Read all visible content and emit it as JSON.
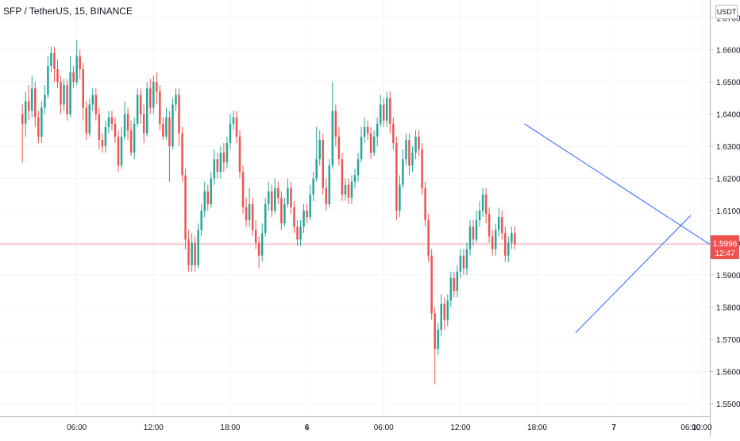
{
  "header": {
    "symbol": "SFP / TetherUS, 15, BINANCE",
    "currency": "USDT"
  },
  "price_badge": {
    "price": "1.5996",
    "countdown": "12:47"
  },
  "colors": {
    "up": "#26a69a",
    "down": "#ef5350",
    "trendline": "#2962ff",
    "axis_text": "#131722",
    "price_line": "#f7a1a0"
  },
  "chart_data": {
    "type": "candlestick",
    "ylim": [
      1.546,
      1.6755
    ],
    "yticks": [
      "1.5500",
      "1.5600",
      "1.5700",
      "1.5800",
      "1.5900",
      "1.6000",
      "1.6100",
      "1.6200",
      "1.6300",
      "1.6400",
      "1.6500",
      "1.6600",
      "1.6700"
    ],
    "ytick_values": [
      1.55,
      1.56,
      1.57,
      1.58,
      1.59,
      1.6,
      1.61,
      1.62,
      1.63,
      1.64,
      1.65,
      1.66,
      1.67
    ],
    "xlim": [
      -7,
      215
    ],
    "xticks": [
      {
        "label": "06:00",
        "x": 17
      },
      {
        "label": "12:00",
        "x": 41
      },
      {
        "label": "18:00",
        "x": 65
      },
      {
        "label": "6",
        "x": 89
      },
      {
        "label": "06:00",
        "x": 113
      },
      {
        "label": "12:00",
        "x": 137
      },
      {
        "label": "18:00",
        "x": 161
      },
      {
        "label": "7",
        "x": 185
      },
      {
        "label": "06:00",
        "x": 209
      }
    ],
    "extra_xtick": {
      "label": "10:00",
      "x": 225
    },
    "current_price": 1.5996,
    "bars": [
      [
        1.64,
        1.637,
        1.643,
        1.625
      ],
      [
        1.637,
        1.644,
        1.647,
        1.633
      ],
      [
        1.644,
        1.641,
        1.649,
        1.638
      ],
      [
        1.641,
        1.648,
        1.652,
        1.639
      ],
      [
        1.648,
        1.639,
        1.65,
        1.636
      ],
      [
        1.639,
        1.633,
        1.641,
        1.631
      ],
      [
        1.633,
        1.642,
        1.644,
        1.631
      ],
      [
        1.642,
        1.646,
        1.649,
        1.64
      ],
      [
        1.646,
        1.655,
        1.658,
        1.645
      ],
      [
        1.655,
        1.659,
        1.661,
        1.653
      ],
      [
        1.659,
        1.654,
        1.661,
        1.65
      ],
      [
        1.654,
        1.65,
        1.657,
        1.648
      ],
      [
        1.65,
        1.643,
        1.652,
        1.64
      ],
      [
        1.643,
        1.649,
        1.651,
        1.641
      ],
      [
        1.649,
        1.64,
        1.651,
        1.638
      ],
      [
        1.64,
        1.653,
        1.658,
        1.639
      ],
      [
        1.653,
        1.65,
        1.655,
        1.648
      ],
      [
        1.65,
        1.658,
        1.663,
        1.649
      ],
      [
        1.658,
        1.654,
        1.66,
        1.651
      ],
      [
        1.654,
        1.642,
        1.656,
        1.638
      ],
      [
        1.642,
        1.634,
        1.644,
        1.632
      ],
      [
        1.634,
        1.643,
        1.645,
        1.633
      ],
      [
        1.643,
        1.646,
        1.648,
        1.641
      ],
      [
        1.646,
        1.64,
        1.648,
        1.638
      ],
      [
        1.64,
        1.632,
        1.642,
        1.629
      ],
      [
        1.632,
        1.63,
        1.634,
        1.628
      ],
      [
        1.63,
        1.636,
        1.638,
        1.628
      ],
      [
        1.636,
        1.639,
        1.641,
        1.634
      ],
      [
        1.639,
        1.637,
        1.641,
        1.635
      ],
      [
        1.637,
        1.633,
        1.639,
        1.631
      ],
      [
        1.633,
        1.624,
        1.635,
        1.622
      ],
      [
        1.624,
        1.633,
        1.636,
        1.623
      ],
      [
        1.633,
        1.64,
        1.644,
        1.632
      ],
      [
        1.64,
        1.635,
        1.642,
        1.632
      ],
      [
        1.635,
        1.628,
        1.638,
        1.627
      ],
      [
        1.628,
        1.637,
        1.639,
        1.626
      ],
      [
        1.637,
        1.646,
        1.648,
        1.636
      ],
      [
        1.646,
        1.64,
        1.648,
        1.637
      ],
      [
        1.64,
        1.634,
        1.643,
        1.631
      ],
      [
        1.634,
        1.648,
        1.65,
        1.633
      ],
      [
        1.648,
        1.642,
        1.651,
        1.64
      ],
      [
        1.642,
        1.65,
        1.652,
        1.64
      ],
      [
        1.65,
        1.647,
        1.653,
        1.643
      ],
      [
        1.647,
        1.637,
        1.649,
        1.635
      ],
      [
        1.637,
        1.633,
        1.639,
        1.632
      ],
      [
        1.633,
        1.639,
        1.642,
        1.632
      ],
      [
        1.639,
        1.63,
        1.641,
        1.619
      ],
      [
        1.63,
        1.643,
        1.645,
        1.629
      ],
      [
        1.643,
        1.646,
        1.648,
        1.641
      ],
      [
        1.646,
        1.634,
        1.648,
        1.63
      ],
      [
        1.634,
        1.621,
        1.636,
        1.619
      ],
      [
        1.621,
        1.601,
        1.623,
        1.598
      ],
      [
        1.601,
        1.593,
        1.604,
        1.591
      ],
      [
        1.593,
        1.6,
        1.603,
        1.591
      ],
      [
        1.6,
        1.593,
        1.602,
        1.591
      ],
      [
        1.593,
        1.604,
        1.606,
        1.592
      ],
      [
        1.604,
        1.61,
        1.612,
        1.602
      ],
      [
        1.61,
        1.616,
        1.619,
        1.608
      ],
      [
        1.616,
        1.612,
        1.618,
        1.61
      ],
      [
        1.612,
        1.62,
        1.622,
        1.611
      ],
      [
        1.62,
        1.626,
        1.629,
        1.618
      ],
      [
        1.626,
        1.622,
        1.628,
        1.62
      ],
      [
        1.622,
        1.628,
        1.63,
        1.62
      ],
      [
        1.628,
        1.625,
        1.631,
        1.622
      ],
      [
        1.625,
        1.631,
        1.633,
        1.623
      ],
      [
        1.631,
        1.637,
        1.64,
        1.629
      ],
      [
        1.637,
        1.639,
        1.641,
        1.635
      ],
      [
        1.639,
        1.633,
        1.641,
        1.631
      ],
      [
        1.633,
        1.622,
        1.635,
        1.62
      ],
      [
        1.622,
        1.611,
        1.624,
        1.609
      ],
      [
        1.611,
        1.607,
        1.614,
        1.605
      ],
      [
        1.607,
        1.612,
        1.617,
        1.605
      ],
      [
        1.612,
        1.604,
        1.614,
        1.602
      ],
      [
        1.604,
        1.6,
        1.607,
        1.598
      ],
      [
        1.6,
        1.596,
        1.602,
        1.592
      ],
      [
        1.596,
        1.603,
        1.606,
        1.594
      ],
      [
        1.603,
        1.612,
        1.614,
        1.602
      ],
      [
        1.612,
        1.616,
        1.619,
        1.61
      ],
      [
        1.616,
        1.61,
        1.618,
        1.608
      ],
      [
        1.61,
        1.617,
        1.62,
        1.609
      ],
      [
        1.617,
        1.614,
        1.619,
        1.612
      ],
      [
        1.614,
        1.606,
        1.616,
        1.604
      ],
      [
        1.606,
        1.612,
        1.614,
        1.605
      ],
      [
        1.612,
        1.617,
        1.62,
        1.611
      ],
      [
        1.617,
        1.611,
        1.619,
        1.609
      ],
      [
        1.611,
        1.605,
        1.613,
        1.603
      ],
      [
        1.605,
        1.601,
        1.607,
        1.599
      ],
      [
        1.601,
        1.605,
        1.607,
        1.599
      ],
      [
        1.605,
        1.61,
        1.612,
        1.603
      ],
      [
        1.61,
        1.608,
        1.612,
        1.606
      ],
      [
        1.608,
        1.615,
        1.618,
        1.607
      ],
      [
        1.615,
        1.62,
        1.622,
        1.613
      ],
      [
        1.62,
        1.626,
        1.636,
        1.619
      ],
      [
        1.626,
        1.632,
        1.635,
        1.624
      ],
      [
        1.632,
        1.617,
        1.634,
        1.615
      ],
      [
        1.617,
        1.612,
        1.62,
        1.61
      ],
      [
        1.612,
        1.624,
        1.626,
        1.611
      ],
      [
        1.624,
        1.641,
        1.65,
        1.623
      ],
      [
        1.641,
        1.633,
        1.643,
        1.63
      ],
      [
        1.633,
        1.626,
        1.636,
        1.624
      ],
      [
        1.626,
        1.615,
        1.628,
        1.613
      ],
      [
        1.615,
        1.618,
        1.62,
        1.613
      ],
      [
        1.618,
        1.614,
        1.62,
        1.612
      ],
      [
        1.614,
        1.619,
        1.621,
        1.612
      ],
      [
        1.619,
        1.621,
        1.623,
        1.617
      ],
      [
        1.621,
        1.626,
        1.628,
        1.619
      ],
      [
        1.626,
        1.633,
        1.636,
        1.625
      ],
      [
        1.633,
        1.636,
        1.639,
        1.631
      ],
      [
        1.636,
        1.634,
        1.638,
        1.632
      ],
      [
        1.634,
        1.628,
        1.636,
        1.626
      ],
      [
        1.628,
        1.633,
        1.635,
        1.627
      ],
      [
        1.633,
        1.637,
        1.639,
        1.63
      ],
      [
        1.637,
        1.643,
        1.646,
        1.636
      ],
      [
        1.643,
        1.638,
        1.645,
        1.636
      ],
      [
        1.638,
        1.645,
        1.647,
        1.636
      ],
      [
        1.645,
        1.637,
        1.647,
        1.634
      ],
      [
        1.637,
        1.631,
        1.639,
        1.629
      ],
      [
        1.631,
        1.61,
        1.633,
        1.607
      ],
      [
        1.61,
        1.618,
        1.621,
        1.608
      ],
      [
        1.618,
        1.626,
        1.629,
        1.617
      ],
      [
        1.626,
        1.632,
        1.634,
        1.624
      ],
      [
        1.632,
        1.624,
        1.634,
        1.621
      ],
      [
        1.624,
        1.628,
        1.63,
        1.622
      ],
      [
        1.628,
        1.633,
        1.635,
        1.626
      ],
      [
        1.633,
        1.629,
        1.635,
        1.627
      ],
      [
        1.629,
        1.617,
        1.631,
        1.615
      ],
      [
        1.617,
        1.607,
        1.619,
        1.605
      ],
      [
        1.607,
        1.596,
        1.609,
        1.594
      ],
      [
        1.596,
        1.578,
        1.598,
        1.576
      ],
      [
        1.578,
        1.567,
        1.58,
        1.556
      ],
      [
        1.567,
        1.573,
        1.575,
        1.565
      ],
      [
        1.573,
        1.581,
        1.584,
        1.571
      ],
      [
        1.581,
        1.576,
        1.583,
        1.573
      ],
      [
        1.576,
        1.582,
        1.584,
        1.574
      ],
      [
        1.582,
        1.589,
        1.591,
        1.58
      ],
      [
        1.589,
        1.585,
        1.591,
        1.583
      ],
      [
        1.585,
        1.591,
        1.593,
        1.583
      ],
      [
        1.591,
        1.596,
        1.598,
        1.589
      ],
      [
        1.596,
        1.592,
        1.598,
        1.59
      ],
      [
        1.592,
        1.598,
        1.6,
        1.59
      ],
      [
        1.598,
        1.605,
        1.607,
        1.596
      ],
      [
        1.605,
        1.601,
        1.607,
        1.599
      ],
      [
        1.601,
        1.607,
        1.61,
        1.6
      ],
      [
        1.607,
        1.61,
        1.613,
        1.605
      ],
      [
        1.61,
        1.615,
        1.617,
        1.608
      ],
      [
        1.615,
        1.609,
        1.617,
        1.606
      ],
      [
        1.609,
        1.602,
        1.611,
        1.6
      ],
      [
        1.602,
        1.598,
        1.604,
        1.596
      ],
      [
        1.598,
        1.604,
        1.606,
        1.596
      ],
      [
        1.604,
        1.608,
        1.611,
        1.602
      ],
      [
        1.608,
        1.603,
        1.61,
        1.601
      ],
      [
        1.603,
        1.596,
        1.605,
        1.594
      ],
      [
        1.596,
        1.6,
        1.602,
        1.594
      ],
      [
        1.6,
        1.603,
        1.605,
        1.598
      ],
      [
        1.603,
        1.5996,
        1.605,
        1.598
      ]
    ],
    "trendlines": [
      {
        "from": [
          157,
          1.637
        ],
        "to": [
          215,
          1.5995
        ]
      },
      {
        "from": [
          173,
          1.572
        ],
        "to": [
          209,
          1.6085
        ]
      }
    ]
  }
}
